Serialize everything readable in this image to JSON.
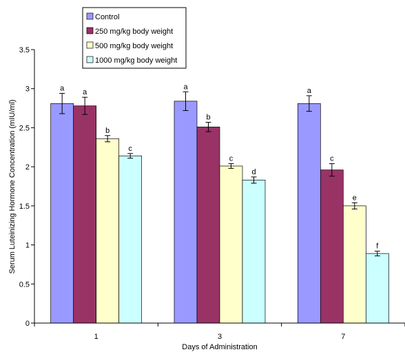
{
  "chart_data": {
    "type": "bar",
    "title": "",
    "xlabel": "Days of Administration",
    "ylabel": "Serum Luteinizing Hormone Concentration (mIU/ml)",
    "ylim": [
      0,
      3.5
    ],
    "yticks": [
      "0",
      "0.5",
      "1",
      "1.5",
      "2",
      "2.5",
      "3",
      "3.5"
    ],
    "categories": [
      "1",
      "3",
      "7"
    ],
    "grid": false,
    "legend_position": "top-left",
    "series": [
      {
        "name": "Control",
        "color": "#9999ff",
        "values": [
          2.81,
          2.84,
          2.81
        ],
        "errors": [
          0.13,
          0.12,
          0.1
        ],
        "labels": [
          "a",
          "a",
          "a"
        ]
      },
      {
        "name": "250 mg/kg body weight",
        "color": "#993366",
        "values": [
          2.78,
          2.51,
          1.96
        ],
        "errors": [
          0.11,
          0.06,
          0.08
        ],
        "labels": [
          "a",
          "b",
          "c"
        ]
      },
      {
        "name": "500 mg/kg body weight",
        "color": "#ffffcc",
        "values": [
          2.36,
          2.01,
          1.5
        ],
        "errors": [
          0.04,
          0.03,
          0.04
        ],
        "labels": [
          "b",
          "c",
          "e"
        ]
      },
      {
        "name": "1000 mg/kg body weight",
        "color": "#ccffff",
        "values": [
          2.14,
          1.83,
          0.89
        ],
        "errors": [
          0.03,
          0.04,
          0.03
        ],
        "labels": [
          "c",
          "d",
          "f"
        ]
      }
    ]
  }
}
